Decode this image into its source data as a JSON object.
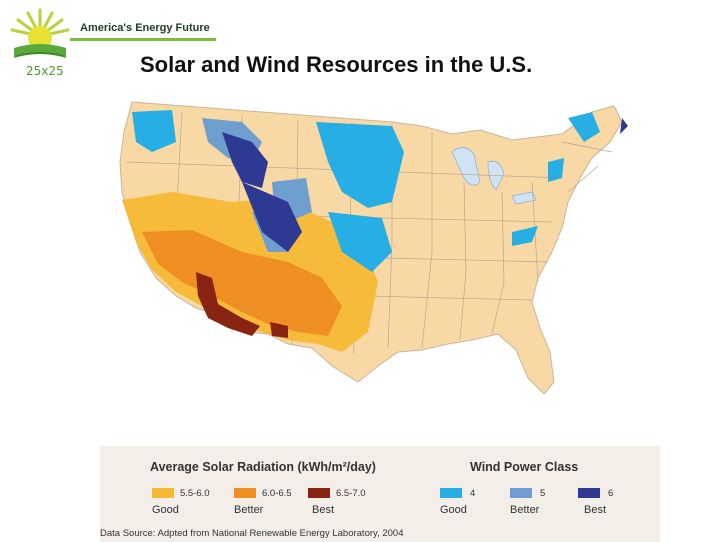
{
  "header": {
    "tagline": "America's Energy Future",
    "logo_text": "25x25",
    "title": "Solar and Wind Resources in the U.S."
  },
  "legend": {
    "solar_heading": "Average Solar Radiation (kWh/m²/day)",
    "solar_classes": [
      {
        "range": "5.5-6.0",
        "label": "Good",
        "color": "#f5b934"
      },
      {
        "range": "6.0-6.5",
        "label": "Better",
        "color": "#ef8e22"
      },
      {
        "range": "6.5-7.0",
        "label": "Best",
        "color": "#8a2412"
      }
    ],
    "wind_heading": "Wind Power Class",
    "wind_classes": [
      {
        "class": "4",
        "label": "Good",
        "color": "#27aee4"
      },
      {
        "class": "5",
        "label": "Better",
        "color": "#6f9fcf"
      },
      {
        "class": "6",
        "label": "Best",
        "color": "#2e3a92"
      }
    ],
    "source": "Data Source: Adpted from National Renewable Energy Laboratory, 2004"
  },
  "colors": {
    "land": "#f8d9a6",
    "water": "#cfe3f2",
    "border": "#9a8a78"
  }
}
